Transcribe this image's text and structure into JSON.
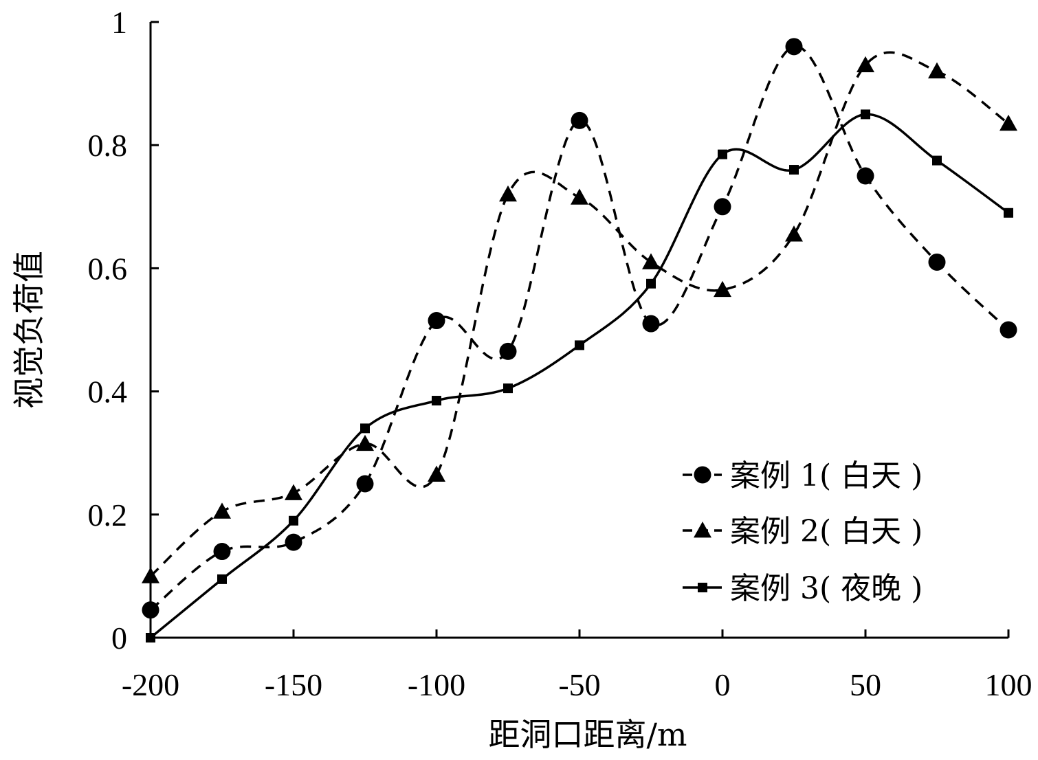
{
  "chart_data": {
    "type": "line",
    "title": "",
    "xlabel": "距洞口距离/m",
    "ylabel": "视觉负荷值",
    "xlim": [
      -200,
      100
    ],
    "ylim": [
      0,
      1
    ],
    "x_ticks": [
      "-200",
      "-150",
      "-100",
      "-50",
      "0",
      "50",
      "100"
    ],
    "y_ticks": [
      "0",
      "0.2",
      "0.4",
      "0.6",
      "0.8",
      "1"
    ],
    "x_tick_values": [
      -200,
      -150,
      -100,
      -50,
      0,
      50,
      100
    ],
    "y_tick_values": [
      0,
      0.2,
      0.4,
      0.6,
      0.8,
      1
    ],
    "x": [
      -200,
      -175,
      -150,
      -125,
      -100,
      -75,
      -50,
      -25,
      0,
      25,
      50,
      75,
      100
    ],
    "grid": false,
    "legend_position": "bottom-right",
    "smooth": true,
    "series": [
      {
        "name": "案例 1( 白天 )",
        "marker": "circle",
        "dash": "dashed",
        "values": [
          0.045,
          0.14,
          0.155,
          0.25,
          0.515,
          0.465,
          0.84,
          0.51,
          0.7,
          0.96,
          0.75,
          0.61,
          0.5
        ]
      },
      {
        "name": "案例 2( 白天 )",
        "marker": "triangle",
        "dash": "dashed",
        "values": [
          0.1,
          0.205,
          0.235,
          0.315,
          0.265,
          0.72,
          0.715,
          0.61,
          0.565,
          0.655,
          0.93,
          0.92,
          0.835
        ]
      },
      {
        "name": "案例 3( 夜晚 )",
        "marker": "square",
        "dash": "solid",
        "values": [
          0.0,
          0.095,
          0.19,
          0.34,
          0.385,
          0.405,
          0.475,
          0.575,
          0.785,
          0.76,
          0.85,
          0.775,
          0.69
        ]
      }
    ],
    "colors": {
      "line": "#000000",
      "background": "#ffffff"
    }
  }
}
